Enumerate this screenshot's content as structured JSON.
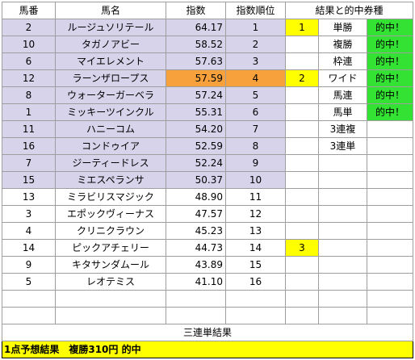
{
  "headers": {
    "num": "馬番",
    "name": "馬名",
    "index": "指数",
    "rank": "指数順位",
    "result": "結果と的中券種"
  },
  "rows": [
    {
      "num": "2",
      "name": "ルージュソリテール",
      "index": "64.17",
      "rank": "1",
      "mark": "1",
      "ticket": "単勝",
      "hit": "的中！"
    },
    {
      "num": "10",
      "name": "タガノアビー",
      "index": "58.52",
      "rank": "2",
      "mark": "",
      "ticket": "複勝",
      "hit": "的中！"
    },
    {
      "num": "6",
      "name": "マイエレメント",
      "index": "57.63",
      "rank": "3",
      "mark": "",
      "ticket": "枠連",
      "hit": "的中！"
    },
    {
      "num": "12",
      "name": "ラーンザロープス",
      "index": "57.59",
      "rank": "4",
      "mark": "2",
      "ticket": "ワイド",
      "hit": "的中！"
    },
    {
      "num": "8",
      "name": "ウォーターガーベラ",
      "index": "57.24",
      "rank": "5",
      "mark": "",
      "ticket": "馬連",
      "hit": "的中！"
    },
    {
      "num": "1",
      "name": "ミッキーツインクル",
      "index": "55.31",
      "rank": "6",
      "mark": "",
      "ticket": "馬単",
      "hit": "的中！"
    },
    {
      "num": "11",
      "name": "ハニーコム",
      "index": "54.20",
      "rank": "7",
      "mark": "",
      "ticket": "3連複",
      "hit": ""
    },
    {
      "num": "16",
      "name": "コンドゥイア",
      "index": "52.59",
      "rank": "8",
      "mark": "",
      "ticket": "3連単",
      "hit": ""
    },
    {
      "num": "7",
      "name": "ジーティードレス",
      "index": "52.24",
      "rank": "9",
      "mark": "",
      "ticket": "",
      "hit": ""
    },
    {
      "num": "15",
      "name": "ミエスペランサ",
      "index": "50.37",
      "rank": "10",
      "mark": "",
      "ticket": "",
      "hit": ""
    },
    {
      "num": "13",
      "name": "ミラビリスマジック",
      "index": "48.90",
      "rank": "11",
      "mark": "",
      "ticket": "",
      "hit": ""
    },
    {
      "num": "3",
      "name": "エポックヴィーナス",
      "index": "47.57",
      "rank": "12",
      "mark": "",
      "ticket": "",
      "hit": ""
    },
    {
      "num": "4",
      "name": "クリニクラウン",
      "index": "45.23",
      "rank": "13",
      "mark": "",
      "ticket": "",
      "hit": ""
    },
    {
      "num": "14",
      "name": "ピックアチェリー",
      "index": "44.73",
      "rank": "14",
      "mark": "3",
      "ticket": "",
      "hit": ""
    },
    {
      "num": "9",
      "name": "キタサンダムール",
      "index": "43.89",
      "rank": "15",
      "mark": "",
      "ticket": "",
      "hit": ""
    },
    {
      "num": "5",
      "name": "レオテミス",
      "index": "41.10",
      "rank": "16",
      "mark": "",
      "ticket": "",
      "hit": ""
    }
  ],
  "footer_title": "三連単結果",
  "summary": "1点予想結果　複勝310円 的中",
  "colors": {
    "lavender": "#d6d3ea",
    "orange": "#f7a13c",
    "yellow": "#ffff00",
    "green": "#33e233"
  }
}
